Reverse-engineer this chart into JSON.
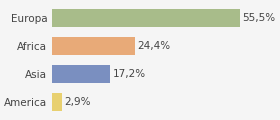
{
  "categories": [
    "America",
    "Asia",
    "Africa",
    "Europa"
  ],
  "values": [
    2.9,
    17.2,
    24.4,
    55.5
  ],
  "labels": [
    "2,9%",
    "17,2%",
    "24,4%",
    "55,5%"
  ],
  "bar_colors": [
    "#e8d070",
    "#7a8fc0",
    "#e8aa78",
    "#a8bc8a"
  ],
  "background_color": "#f5f5f5",
  "xlim": [
    0,
    65
  ],
  "label_fontsize": 7.5,
  "tick_fontsize": 7.5
}
